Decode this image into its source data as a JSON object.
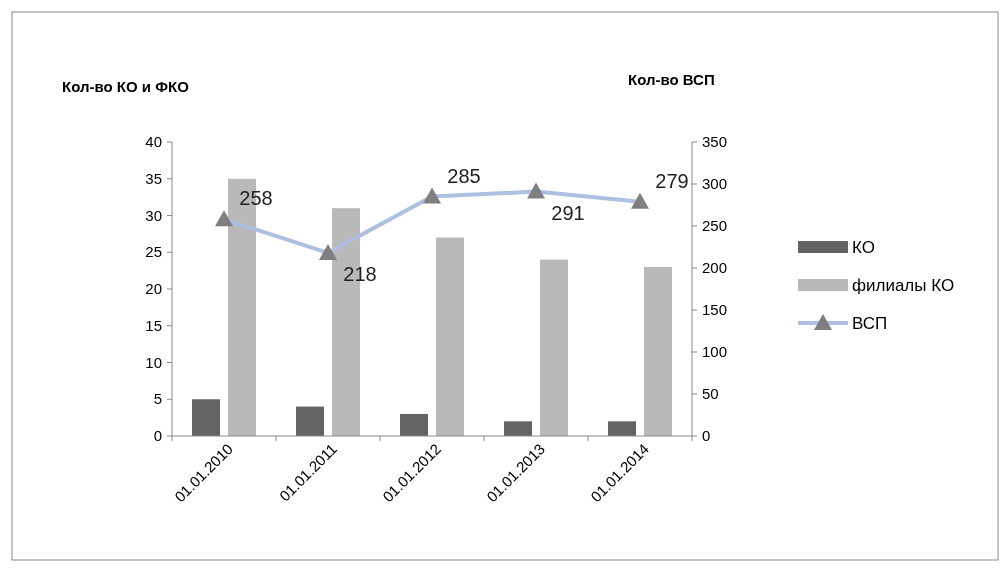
{
  "chart_data": {
    "type": "bar",
    "ylabel": "Кол-во КО и ФКО",
    "y2label": "Кол-во ВСП",
    "categories": [
      "01.01.2010",
      "01.01.2011",
      "01.01.2012",
      "01.01.2013",
      "01.01.2014"
    ],
    "series": [
      {
        "name": "КО",
        "color": "#646464",
        "values": [
          5,
          4,
          3,
          2,
          2
        ]
      },
      {
        "name": "филиалы КО",
        "color": "#b9b9b9",
        "values": [
          35,
          31,
          27,
          24,
          23
        ]
      },
      {
        "name": "ВСП",
        "type": "line",
        "axis": "y2",
        "color": "#adc0e2",
        "values": [
          258,
          218,
          285,
          291,
          279
        ],
        "value_labels": [
          "258",
          "218",
          "285",
          "291",
          "279"
        ],
        "marker": "triangle"
      }
    ],
    "ylim": [
      0,
      40
    ],
    "yticks": [
      0,
      5,
      10,
      15,
      20,
      25,
      30,
      35,
      40
    ],
    "y2lim": [
      0,
      350
    ],
    "y2ticks": [
      0,
      50,
      100,
      150,
      200,
      250,
      300,
      350
    ],
    "grid": false,
    "legend": "right"
  }
}
